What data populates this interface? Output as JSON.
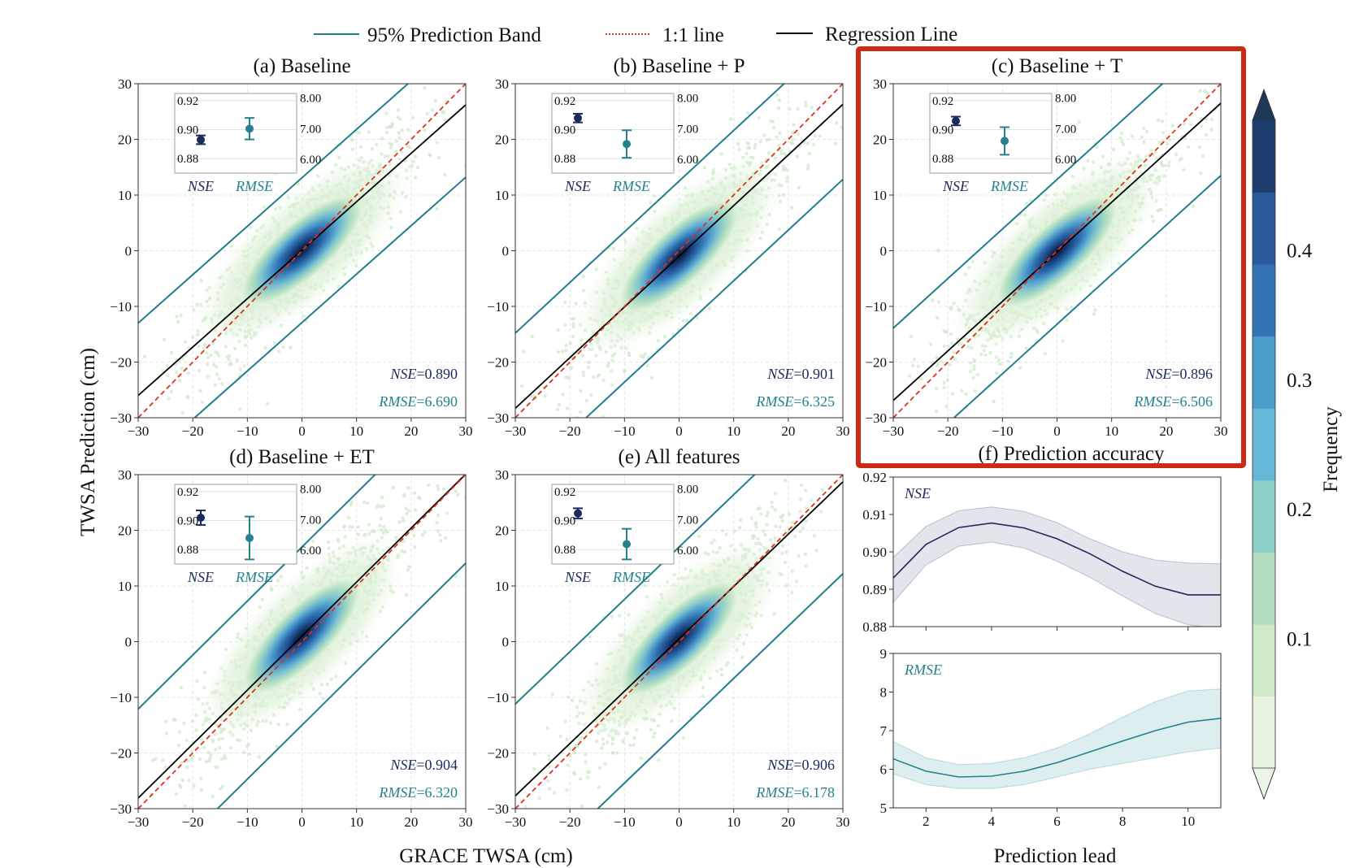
{
  "legend": {
    "band_label": "95% Prediction Band",
    "oneone_label": "1:1 line",
    "reg_label": "Regression Line"
  },
  "colors": {
    "band": "#1f7f8a",
    "oneone": "#e0321c",
    "regression": "#000000",
    "nse": "#1b2a5c",
    "rmse": "#23828e",
    "highlight": "#cc2a14"
  },
  "axes": {
    "xlabel": "GRACE TWSA (cm)",
    "ylabel": "TWSA Prediction (cm)",
    "f_xlabel": "Prediction lead",
    "colorbar_label": "Frequency"
  },
  "chart_data": [
    {
      "type": "scatter",
      "title": "(a) Baseline",
      "xlim": [
        -30,
        30
      ],
      "ylim": [
        -30,
        30
      ],
      "ticks": [
        -30,
        -20,
        -10,
        0,
        10,
        20,
        30
      ],
      "regression": {
        "slope": 0.87,
        "intercept": 0.1
      },
      "band_halfwidth": 13,
      "nse_label": "NSE",
      "nse_value": "=0.890",
      "rmse_label": "RMSE",
      "rmse_value": "=6.690",
      "inset": {
        "nse": 0.893,
        "nse_err": 0.003,
        "rmse": 7.0,
        "rmse_err": 0.35,
        "nse_ticks": [
          "0.92",
          "0.90",
          "0.88"
        ],
        "rmse_ticks": [
          "8.00",
          "7.00",
          "6.00"
        ],
        "nse_label": "NSE",
        "rmse_label": "RMSE"
      }
    },
    {
      "type": "scatter",
      "title": "(b) Baseline + P",
      "xlim": [
        -30,
        30
      ],
      "ylim": [
        -30,
        30
      ],
      "ticks": [
        -30,
        -20,
        -10,
        0,
        10,
        20,
        30
      ],
      "regression": {
        "slope": 0.91,
        "intercept": -1.0
      },
      "band_halfwidth": 13.5,
      "nse_label": "NSE",
      "nse_value": "=0.901",
      "rmse_label": "RMSE",
      "rmse_value": "=6.325",
      "inset": {
        "nse": 0.908,
        "nse_err": 0.003,
        "rmse": 6.5,
        "rmse_err": 0.45,
        "nse_ticks": [
          "0.92",
          "0.90",
          "0.88"
        ],
        "rmse_ticks": [
          "8.00",
          "7.00",
          "6.00"
        ],
        "nse_label": "NSE",
        "rmse_label": "RMSE"
      }
    },
    {
      "type": "scatter",
      "title": "(c) Baseline + T",
      "xlim": [
        -30,
        30
      ],
      "ylim": [
        -30,
        30
      ],
      "ticks": [
        -30,
        -20,
        -10,
        0,
        10,
        20,
        30
      ],
      "regression": {
        "slope": 0.89,
        "intercept": -0.2
      },
      "band_halfwidth": 13,
      "nse_label": "NSE",
      "nse_value": "=0.896",
      "rmse_label": "RMSE",
      "rmse_value": "=6.506",
      "inset": {
        "nse": 0.906,
        "nse_err": 0.003,
        "rmse": 6.6,
        "rmse_err": 0.45,
        "nse_ticks": [
          "0.92",
          "0.90",
          "0.88"
        ],
        "rmse_ticks": [
          "8.00",
          "7.00",
          "6.00"
        ],
        "nse_label": "NSE",
        "rmse_label": "RMSE"
      }
    },
    {
      "type": "scatter",
      "title": "(d) Baseline + ET",
      "xlim": [
        -30,
        30
      ],
      "ylim": [
        -30,
        30
      ],
      "ticks": [
        -30,
        -20,
        -10,
        0,
        10,
        20,
        30
      ],
      "regression": {
        "slope": 0.97,
        "intercept": 1.0
      },
      "band_halfwidth": 16,
      "nse_label": "NSE",
      "nse_value": "=0.904",
      "rmse_label": "RMSE",
      "rmse_value": "=6.320",
      "inset": {
        "nse": 0.902,
        "nse_err": 0.005,
        "rmse": 6.4,
        "rmse_err": 0.7,
        "nse_ticks": [
          "0.92",
          "0.90",
          "0.88"
        ],
        "rmse_ticks": [
          "8.00",
          "7.00",
          "6.00"
        ],
        "nse_label": "NSE",
        "rmse_label": "RMSE"
      }
    },
    {
      "type": "scatter",
      "title": "(e) All features",
      "xlim": [
        -30,
        30
      ],
      "ylim": [
        -30,
        30
      ],
      "ticks": [
        -30,
        -20,
        -10,
        0,
        10,
        20,
        30
      ],
      "regression": {
        "slope": 0.94,
        "intercept": 0.5
      },
      "band_halfwidth": 16.5,
      "nse_label": "NSE",
      "nse_value": "=0.906",
      "rmse_label": "RMSE",
      "rmse_value": "=6.178",
      "inset": {
        "nse": 0.905,
        "nse_err": 0.0035,
        "rmse": 6.2,
        "rmse_err": 0.5,
        "nse_ticks": [
          "0.92",
          "0.90",
          "0.88"
        ],
        "rmse_ticks": [
          "8.00",
          "7.00",
          "6.00"
        ],
        "nse_label": "NSE",
        "rmse_label": "RMSE"
      }
    },
    {
      "type": "line",
      "title": "(f) Prediction accuracy",
      "x": [
        1,
        2,
        3,
        4,
        5,
        6,
        7,
        8,
        9,
        10,
        11
      ],
      "xticks": [
        2,
        4,
        6,
        8,
        10
      ],
      "xlim": [
        1,
        11
      ],
      "panels": [
        {
          "label": "NSE",
          "ylim": [
            0.88,
            0.92
          ],
          "yticks": [
            "0.88",
            "0.89",
            "0.90",
            "0.91",
            "0.92"
          ],
          "mean": [
            0.893,
            0.902,
            0.9065,
            0.9077,
            0.9064,
            0.9035,
            0.8995,
            0.8948,
            0.8908,
            0.8885,
            0.8885
          ],
          "upper": [
            0.8985,
            0.9068,
            0.911,
            0.912,
            0.9108,
            0.9078,
            0.9035,
            0.9,
            0.8978,
            0.897,
            0.8968
          ],
          "lower": [
            0.8865,
            0.8965,
            0.9015,
            0.9026,
            0.901,
            0.8975,
            0.8932,
            0.8882,
            0.8835,
            0.8805,
            0.8795
          ]
        },
        {
          "label": "RMSE",
          "ylim": [
            5,
            9
          ],
          "yticks": [
            "5",
            "6",
            "7",
            "8",
            "9"
          ],
          "mean": [
            6.27,
            5.95,
            5.8,
            5.82,
            5.95,
            6.17,
            6.45,
            6.73,
            7.0,
            7.22,
            7.32
          ],
          "upper": [
            6.72,
            6.3,
            6.12,
            6.15,
            6.3,
            6.55,
            6.92,
            7.35,
            7.75,
            8.03,
            8.08
          ],
          "lower": [
            5.88,
            5.6,
            5.5,
            5.5,
            5.6,
            5.8,
            6.0,
            6.15,
            6.3,
            6.45,
            6.55
          ]
        }
      ]
    }
  ],
  "colorbar": {
    "ticks": [
      "0.1",
      "0.2",
      "0.3",
      "0.4"
    ],
    "tick_values": [
      0.1,
      0.2,
      0.3,
      0.4
    ],
    "vmin": 0.0,
    "vmax": 0.5,
    "bins": [
      "#e6f3de",
      "#cfe9c9",
      "#b3ddc0",
      "#8ccfc6",
      "#66b8d8",
      "#4a9cc9",
      "#3574b4",
      "#2b5a9a",
      "#1f3c6e"
    ],
    "top_color": "#1e3856",
    "bottom_color": "#eaf5e4"
  }
}
